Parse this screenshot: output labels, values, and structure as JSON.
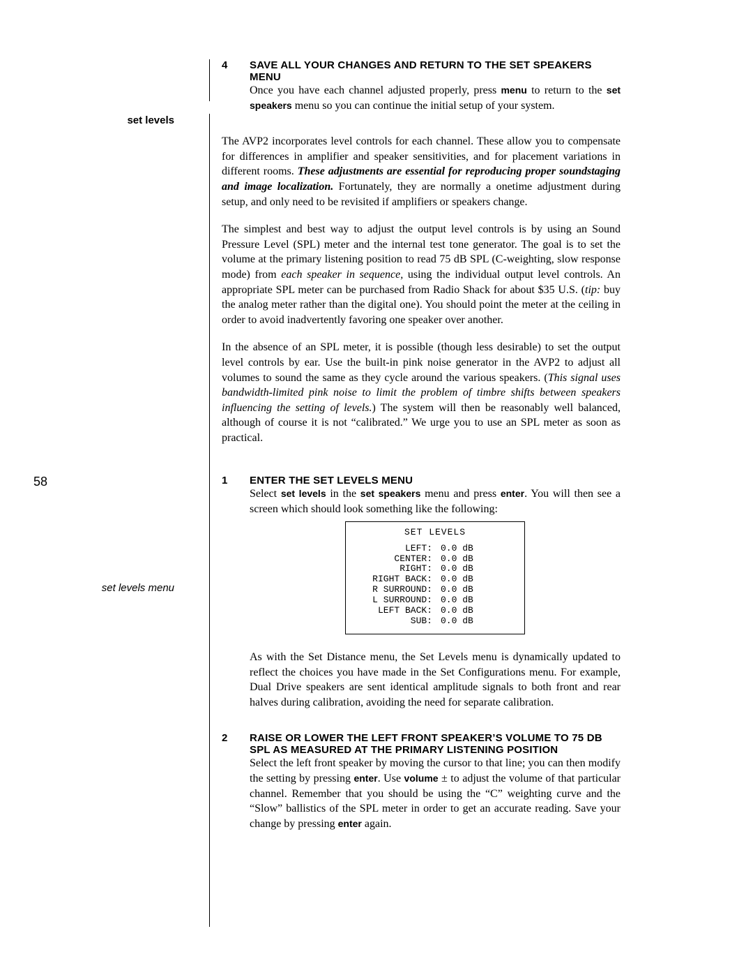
{
  "page_number": "58",
  "step4": {
    "num": "4",
    "title": "SAVE ALL YOUR CHANGES AND RETURN TO THE SET SPEAKERS MENU",
    "text_a": "Once you have each channel adjusted properly, press ",
    "menu_word": "menu",
    "text_b": " to return to the ",
    "setspk": "set speakers",
    "text_c": " menu so you can continue the initial setup of your system."
  },
  "side_set_levels": "set levels",
  "side_menu_label": "set levels menu",
  "sl_para1_a": "The AVP2 incorporates level controls for each channel. These allow you to compensate for differences in amplifier and speaker sensitivities, and for placement variations in different rooms. ",
  "sl_para1_bolditalic": "These adjustments are essential for reproducing proper soundstaging and image localization.",
  "sl_para1_b": " Fortunately, they are normally a onetime adjustment during setup, and only need to be revisited if amplifiers or speakers change.",
  "sl_para2_a": "The simplest and best way to adjust the output level controls is by using an Sound Pressure Level (SPL) meter and the internal test tone generator. The goal is to set the volume at the primary listening position to read 75 dB SPL (C-weighting, slow response mode) from ",
  "sl_para2_i1": "each speaker in sequence,",
  "sl_para2_b": " using the individual output level controls. An appropriate SPL meter can be purchased from Radio Shack for about $35 U.S. (",
  "sl_para2_tip": "tip:",
  "sl_para2_c": " buy the analog meter rather than the digital one). You should point the meter at the ceiling in order to avoid inadvertently favoring one speaker over another.",
  "sl_para3_a": "In the absence of an SPL meter, it is possible (though less desirable) to set the output level controls by ear. Use the built-in pink noise generator in the AVP2 to adjust all volumes to sound the same as they cycle around the various speakers. (",
  "sl_para3_i": "This signal uses bandwidth-limited pink noise to limit the problem of timbre shifts between speakers influencing the setting of levels.",
  "sl_para3_b": ") The system will then be reasonably well balanced, although of course it is not “calibrated.” We urge you to use an SPL meter as soon as practical.",
  "step1": {
    "num": "1",
    "title": "ENTER THE SET LEVELS MENU",
    "t1": "Select ",
    "b1": "set levels",
    "t2": " in the ",
    "b2": "set speakers",
    "t3": " menu and press ",
    "b3": "enter",
    "t4": ". You will then see a screen which should look something like the following:"
  },
  "menu": {
    "title": "SET LEVELS",
    "rows": [
      {
        "label": "LEFT:",
        "val": "0.0 dB"
      },
      {
        "label": "CENTER:",
        "val": "0.0 dB"
      },
      {
        "label": "RIGHT:",
        "val": "0.0 dB"
      },
      {
        "label": "RIGHT BACK:",
        "val": "0.0 dB"
      },
      {
        "label": "R SURROUND:",
        "val": "0.0 dB"
      },
      {
        "label": "L SURROUND:",
        "val": "0.0 dB"
      },
      {
        "label": "LEFT BACK:",
        "val": "0.0 dB"
      },
      {
        "label": "SUB:",
        "val": "0.0 dB"
      }
    ]
  },
  "step1_after": "As with the Set Distance menu, the Set Levels menu is dynamically updated to reflect the choices you have made in the Set Configurations menu. For example, Dual Drive speakers are sent identical amplitude signals to both front and rear halves during calibration, avoiding the need for separate calibration.",
  "step2": {
    "num": "2",
    "title": "RAISE OR LOWER THE LEFT FRONT SPEAKER’S VOLUME TO 75 DB SPL AS MEASURED AT THE PRIMARY LISTENING POSITION",
    "t1": "Select the left front speaker by moving the cursor to that line; you can then modify the setting by pressing ",
    "b1": "enter",
    "t2": ". Use ",
    "b2": "volume",
    "t3": " ± to adjust the volume of that particular channel. Remember that you should be using the “C” weighting curve and the “Slow” ballistics of the SPL meter in order to get an accurate reading. Save your change by pressing ",
    "b3": "enter",
    "t4": " again."
  }
}
